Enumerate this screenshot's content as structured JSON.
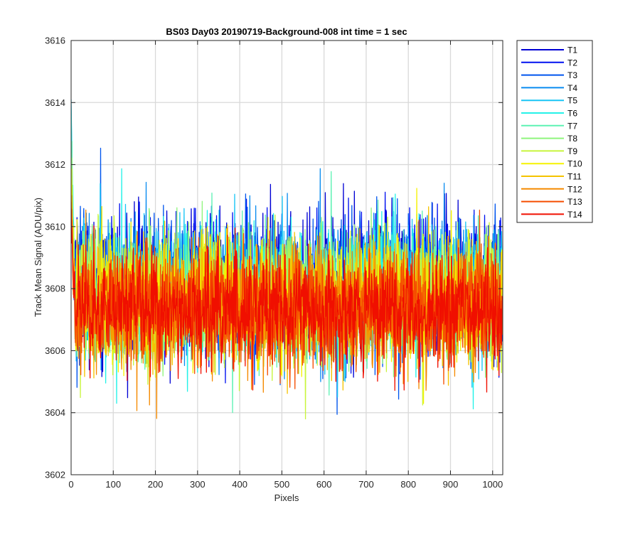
{
  "chart_data": {
    "type": "line",
    "title": "BS03 Day03 20190719-Background-008 int time = 1 sec",
    "xlabel": "Pixels",
    "ylabel": "Track Mean Signal (ADU/pix)",
    "xlim": [
      0,
      1024
    ],
    "ylim": [
      3602,
      3616
    ],
    "x_ticks": [
      "0",
      "100",
      "200",
      "300",
      "400",
      "500",
      "600",
      "700",
      "800",
      "900",
      "1000"
    ],
    "y_ticks": [
      "3602",
      "3604",
      "3606",
      "3608",
      "3610",
      "3612",
      "3614",
      "3616"
    ],
    "grid": true,
    "legend_position": "outside-top-right",
    "n_points": 1024,
    "series": [
      {
        "name": "T1",
        "color": "#0000d4",
        "mean": 3608.2,
        "amplitude": 1.25,
        "start_peak": 3611.9
      },
      {
        "name": "T2",
        "color": "#0010f0",
        "mean": 3608.1,
        "amplitude": 1.2,
        "start_peak": 3611.5
      },
      {
        "name": "T3",
        "color": "#0055ee",
        "mean": 3608.0,
        "amplitude": 1.2,
        "start_peak": 3611.2
      },
      {
        "name": "T4",
        "color": "#0a8cf0",
        "mean": 3608.0,
        "amplitude": 1.2,
        "start_peak": 3612.2
      },
      {
        "name": "T5",
        "color": "#19c5f5",
        "mean": 3607.9,
        "amplitude": 1.2,
        "start_peak": 3614.1
      },
      {
        "name": "T6",
        "color": "#24f2e8",
        "mean": 3607.9,
        "amplitude": 1.2,
        "start_peak": 3613.8
      },
      {
        "name": "T7",
        "color": "#5df2b4",
        "mean": 3607.8,
        "amplitude": 1.15,
        "start_peak": 3612.6
      },
      {
        "name": "T8",
        "color": "#8ff57d",
        "mean": 3607.7,
        "amplitude": 1.15,
        "start_peak": 3612.4
      },
      {
        "name": "T9",
        "color": "#c8f53c",
        "mean": 3607.7,
        "amplitude": 1.15,
        "start_peak": 3611.9
      },
      {
        "name": "T10",
        "color": "#f5f200",
        "mean": 3607.6,
        "amplitude": 1.15,
        "start_peak": 3611.6
      },
      {
        "name": "T11",
        "color": "#f5c300",
        "mean": 3607.5,
        "amplitude": 1.1,
        "start_peak": 3611.3
      },
      {
        "name": "T12",
        "color": "#f58a00",
        "mean": 3607.4,
        "amplitude": 1.1,
        "start_peak": 3611.0
      },
      {
        "name": "T13",
        "color": "#f54d00",
        "mean": 3607.4,
        "amplitude": 1.1,
        "start_peak": 3610.8
      },
      {
        "name": "T14",
        "color": "#f00f00",
        "mean": 3607.3,
        "amplitude": 1.05,
        "start_peak": 3610.6
      }
    ]
  }
}
